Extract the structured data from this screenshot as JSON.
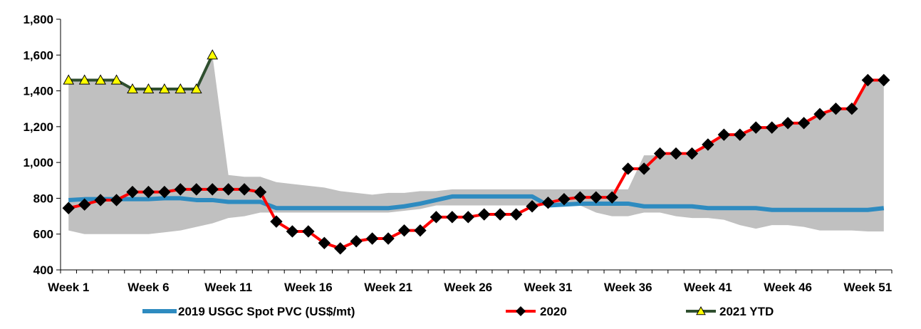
{
  "chart_data": {
    "type": "line",
    "title": "",
    "xlabel": "",
    "ylabel": "",
    "ylim": [
      400,
      1800
    ],
    "yticks": [
      400,
      600,
      800,
      1000,
      1200,
      1400,
      1600,
      1800
    ],
    "ytick_labels": [
      "400",
      "600",
      "800",
      "1,000",
      "1,200",
      "1,400",
      "1,600",
      "1,800"
    ],
    "x_count": 52,
    "xtick_labels": [
      "Week 1",
      "Week 6",
      "Week 11",
      "Week 16",
      "Week 21",
      "Week 26",
      "Week 31",
      "Week 36",
      "Week 41",
      "Week 46",
      "Week 51"
    ],
    "xtick_weeks": [
      1,
      6,
      11,
      16,
      21,
      26,
      31,
      36,
      41,
      46,
      51
    ],
    "range_band": {
      "name": "historical range",
      "color": "#c0c0c0",
      "upper": [
        1460,
        1460,
        1460,
        1460,
        1410,
        1410,
        1410,
        1410,
        1410,
        1600,
        930,
        920,
        920,
        890,
        880,
        870,
        860,
        840,
        830,
        820,
        830,
        830,
        840,
        840,
        850,
        850,
        850,
        850,
        850,
        850,
        850,
        850,
        850,
        850,
        850,
        850,
        1040,
        1040,
        1040,
        1040,
        1100,
        1160,
        1160,
        1200,
        1200,
        1220,
        1220,
        1280,
        1300,
        1300,
        1460,
        1460
      ],
      "lower": [
        620,
        600,
        600,
        600,
        600,
        600,
        610,
        620,
        640,
        660,
        690,
        700,
        720,
        720,
        720,
        720,
        720,
        720,
        720,
        720,
        720,
        730,
        740,
        760,
        760,
        760,
        760,
        760,
        760,
        760,
        760,
        760,
        760,
        720,
        700,
        700,
        720,
        720,
        700,
        690,
        690,
        680,
        650,
        630,
        650,
        650,
        640,
        620,
        620,
        620,
        615,
        615
      ]
    },
    "series": [
      {
        "name": "2019 USGC Spot PVC (US$/mt)",
        "color": "#2e8bc0",
        "marker": "none",
        "values": [
          790,
          795,
          795,
          795,
          795,
          795,
          800,
          800,
          790,
          790,
          780,
          780,
          780,
          745,
          745,
          745,
          745,
          745,
          745,
          745,
          745,
          755,
          770,
          790,
          810,
          810,
          810,
          810,
          810,
          810,
          760,
          765,
          770,
          770,
          770,
          770,
          755,
          755,
          755,
          755,
          745,
          745,
          745,
          745,
          735,
          735,
          735,
          735,
          735,
          735,
          735,
          745
        ]
      },
      {
        "name": "2020",
        "color": "#ff0000",
        "marker": "diamond",
        "values": [
          745,
          765,
          790,
          790,
          835,
          835,
          835,
          850,
          850,
          850,
          850,
          850,
          835,
          670,
          615,
          615,
          550,
          520,
          560,
          575,
          575,
          620,
          620,
          695,
          695,
          695,
          710,
          710,
          710,
          755,
          775,
          795,
          805,
          805,
          805,
          965,
          965,
          1050,
          1050,
          1050,
          1100,
          1155,
          1155,
          1195,
          1195,
          1220,
          1220,
          1270,
          1300,
          1300,
          1460,
          1460
        ]
      },
      {
        "name": "2021 YTD",
        "color": "#2f4f2f",
        "marker": "triangle",
        "marker_color": "#ffff00",
        "values": [
          1460,
          1460,
          1460,
          1460,
          1410,
          1410,
          1410,
          1410,
          1410,
          1600
        ]
      }
    ],
    "legend": {
      "position": "bottom",
      "labels": [
        "2019 USGC Spot PVC (US$/mt)",
        "2020",
        "2021 YTD"
      ]
    }
  }
}
